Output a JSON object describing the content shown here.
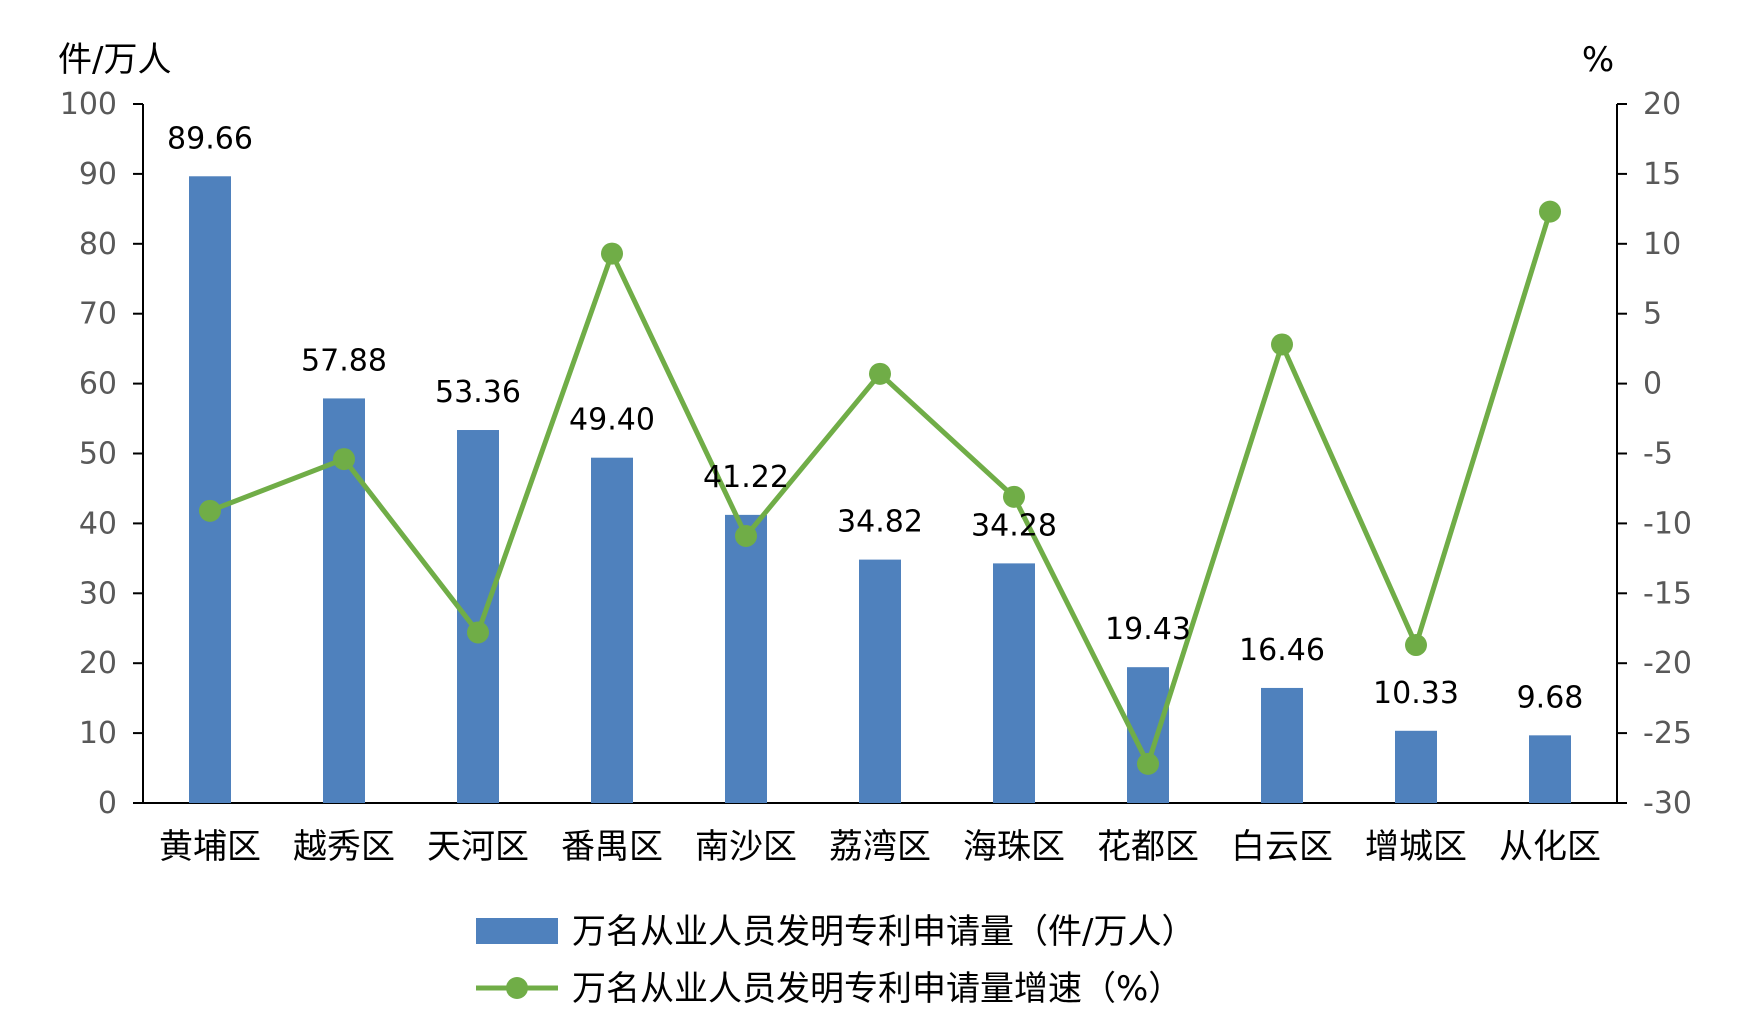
{
  "chart_data": {
    "type": "bar",
    "left_unit": "件/万人",
    "right_unit": "%",
    "categories": [
      "黄埔区",
      "越秀区",
      "天河区",
      "番禺区",
      "南沙区",
      "荔湾区",
      "海珠区",
      "花都区",
      "白云区",
      "增城区",
      "从化区"
    ],
    "series": [
      {
        "name": "万名从业人员发明专利申请量（件/万人）",
        "type": "bar",
        "axis": "left",
        "color": "#4f81bd",
        "values": [
          89.66,
          57.88,
          53.36,
          49.4,
          41.22,
          34.82,
          34.28,
          19.43,
          16.46,
          10.33,
          9.68
        ],
        "labels": [
          "89.66",
          "57.88",
          "53.36",
          "49.40",
          "41.22",
          "34.82",
          "34.28",
          "19.43",
          "16.46",
          "10.33",
          "9.68"
        ]
      },
      {
        "name": "万名从业人员发明专利申请量增速（%）",
        "type": "line",
        "axis": "right",
        "color": "#70ad47",
        "values": [
          -9.1,
          -5.4,
          -17.8,
          9.3,
          -10.9,
          0.7,
          -8.1,
          -27.2,
          2.8,
          -18.7,
          12.3
        ]
      }
    ],
    "left_axis": {
      "ylim": [
        0,
        100
      ],
      "ticks": [
        "0",
        "10",
        "20",
        "30",
        "40",
        "50",
        "60",
        "70",
        "80",
        "90",
        "100"
      ]
    },
    "right_axis": {
      "ylim": [
        -30,
        20
      ],
      "ticks": [
        "-30",
        "-25",
        "-20",
        "-15",
        "-10",
        "-5",
        "0",
        "5",
        "10",
        "15",
        "20"
      ]
    },
    "grid": false,
    "legend_position": "bottom"
  }
}
